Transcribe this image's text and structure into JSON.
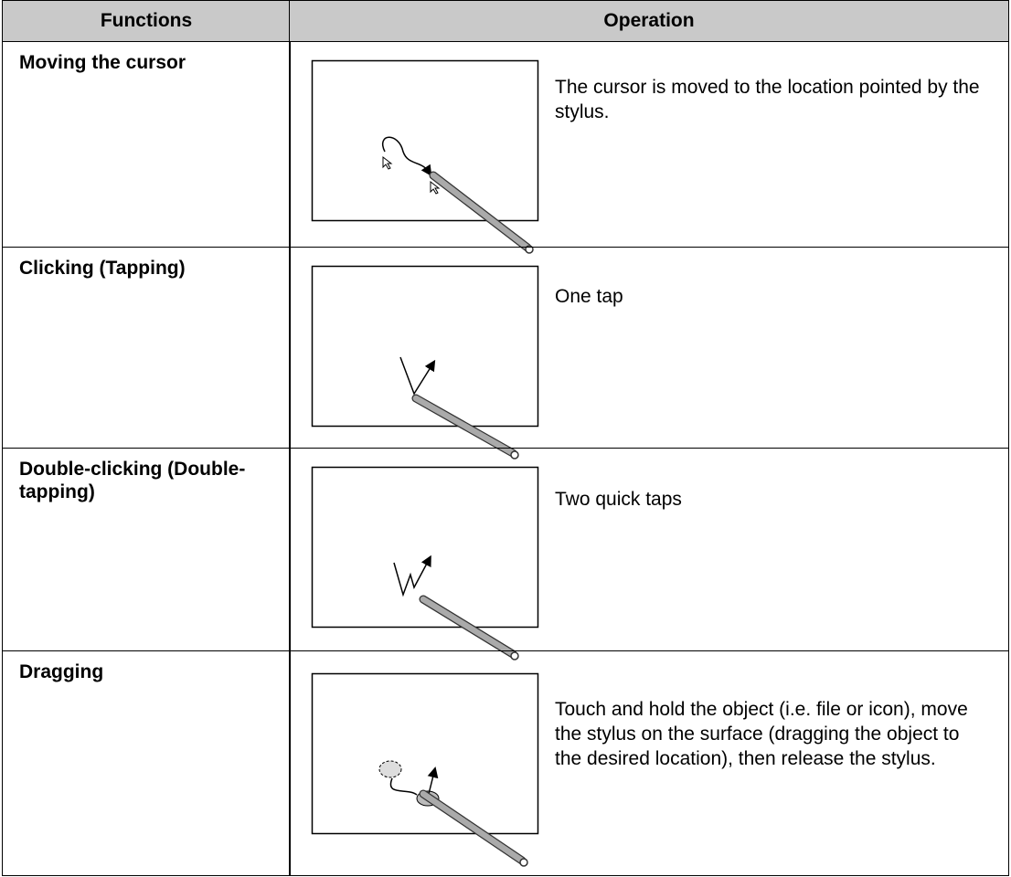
{
  "table": {
    "header": [
      "Functions",
      "Operation"
    ],
    "rows": [
      [
        "Moving the cursor",
        "The cursor is moved to the location pointed by the stylus."
      ],
      [
        "Clicking (Tapping)",
        "One tap"
      ],
      [
        "Double-clicking (Double-tapping)",
        "Two quick taps"
      ],
      [
        "Dragging",
        "Touch and hold the object (i.e. file or icon), move the stylus on the surface (dragging the object to the desired location), then release the stylus."
      ]
    ]
  }
}
